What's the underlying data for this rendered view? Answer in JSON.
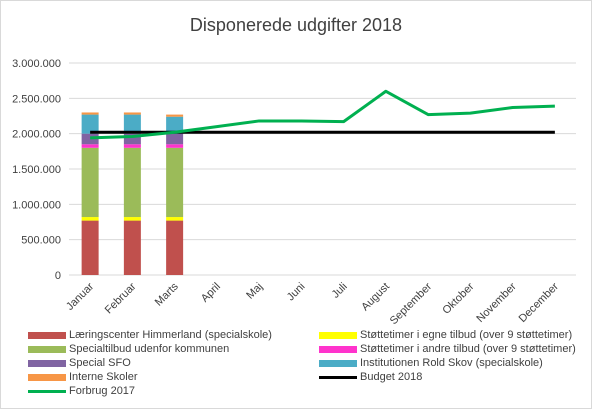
{
  "chart_data": {
    "type": "bar",
    "title": "Disponerede udgifter 2018",
    "categories": [
      "Januar",
      "Februar",
      "Marts",
      "April",
      "Maj",
      "Juni",
      "Juli",
      "August",
      "September",
      "Oktober",
      "November",
      "December"
    ],
    "ylim": [
      0,
      3000000
    ],
    "yticks": [
      "0",
      "500.000",
      "1.000.000",
      "1.500.000",
      "2.000.000",
      "2.500.000",
      "3.000.000"
    ],
    "grid": true,
    "legend_placement": "bottom",
    "stacked_series": [
      {
        "name": "Læringscenter Himmerland (specialskole)",
        "color": "#c0504d",
        "values": [
          770000,
          770000,
          770000
        ]
      },
      {
        "name": "Støttetimer i egne tilbud (over 9 støttetimer)",
        "color": "#ffff00",
        "values": [
          50000,
          50000,
          50000
        ]
      },
      {
        "name": "Specialtilbud udenfor kommunen",
        "color": "#9bbb59",
        "values": [
          980000,
          980000,
          980000
        ]
      },
      {
        "name": "Støttetimer i andre tilbud (over 9 støttetimer)",
        "color": "#ff33cc",
        "values": [
          50000,
          50000,
          50000
        ]
      },
      {
        "name": "Special SFO",
        "color": "#8064a2",
        "values": [
          150000,
          150000,
          150000
        ]
      },
      {
        "name": "Institutionen Rold Skov (specialskole)",
        "color": "#4bacc6",
        "values": [
          270000,
          270000,
          240000
        ]
      },
      {
        "name": "Interne Skoler",
        "color": "#f79646",
        "values": [
          30000,
          30000,
          30000
        ]
      }
    ],
    "line_series": [
      {
        "name": "Budget 2018",
        "color": "#000000",
        "values": [
          2020000,
          2020000,
          2020000,
          2020000,
          2020000,
          2020000,
          2020000,
          2020000,
          2020000,
          2020000,
          2020000,
          2020000
        ]
      },
      {
        "name": "Forbrug 2017",
        "color": "#00b050",
        "values": [
          1940000,
          1960000,
          2020000,
          2100000,
          2180000,
          2180000,
          2170000,
          2600000,
          2270000,
          2290000,
          2370000,
          2390000
        ]
      }
    ]
  }
}
